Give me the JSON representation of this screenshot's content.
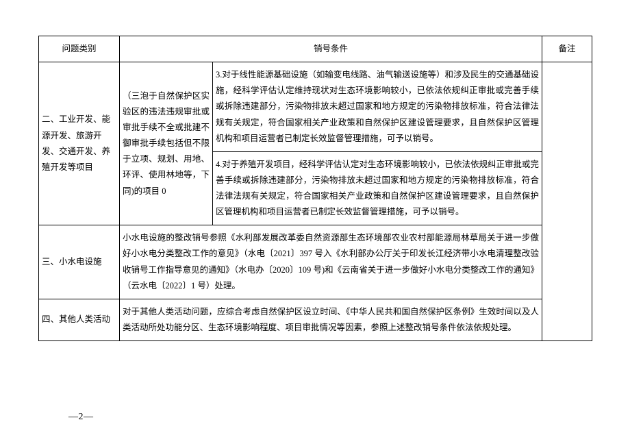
{
  "header": {
    "col1": "问题类别",
    "col2_3": "销号条件",
    "col4": "备注"
  },
  "row1": {
    "category": "二、工业开发、能源开发、旅游开发、交通开发、养殖开发等项目",
    "sub": "（三泡于自然保护区实验区的违法违规审批或审批手续不全或批建不御审批手续包括但不限于立项、规划、用地、环评、使用林地等，下同)的项目 0",
    "cond_a": "3.对于线性能源基础设施（如输变电线路、油气输送设施等）和涉及民生的交通基础设施，经科学评估认定维持现状对生态环境影响较小，已依法依规纠正审批或完善手续或拆除违建部分，污染物排放未超过国家和地方规定的污染物排放标准，符合法律法规有关规定，符合国家相关产业政策和自然保护区建设管理要求，且自然保护区管理机构和项目运营者已制定长效监督管理措施，可予以销号。",
    "cond_b": "4.对于养殖开发项目，经科学评估认定对生态环境影响较小，已依法依规纠正审批或完善手续或拆除违建部分，污染物排放未超过国家和地方规定的污染物排放标准，符合法律法规有关规定，符合国家相关产业政策和自然保护区建设管理要求，且自然保护区管理机构和项目运营者已制定长效监督管理措施，可予以销号。"
  },
  "row2": {
    "category": "三、小水电设施",
    "cond": "小水电设施的整改销号参照《水利部发展改革委自然资源部生态环境部农业农村部能源局林草局关于进一步做好小水电分类整改工作的意见》（水电〔2021〕397 号入《水利部办公厅关于印发长江经济带小水电清理整改验收销号工作指导意见的通知》（水电办〔2020〕109 号)和《云南省关于进一步做好小水电分类整改工作的通知》（云水电〔2022〕1 号）处理。"
  },
  "row3": {
    "category": "四、其他人类活动",
    "cond": "对于其他人类活动问题，应综合考虑自然保护区设立时间、《中华人民共和国自然保护区条例》生效时间以及人类活动所处功能分区、生态环境影响程度、项目审批情况等因素，参照上述整改销号条件依法依规处理。"
  },
  "footer": "—2—"
}
